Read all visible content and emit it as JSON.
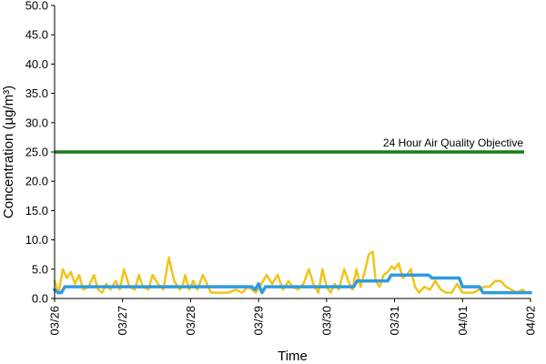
{
  "chart_data": {
    "type": "line",
    "title": "",
    "xlabel": "Time",
    "ylabel": "Concentration (µg/m³)",
    "ylim": [
      0,
      50
    ],
    "y_ticks": [
      "0.0",
      "5.0",
      "10.0",
      "15.0",
      "20.0",
      "25.0",
      "30.0",
      "35.0",
      "40.0",
      "45.0",
      "50.0"
    ],
    "x_tick_labels": [
      "03/26",
      "03/27",
      "03/28",
      "03/29",
      "03/30",
      "03/31",
      "04/01",
      "04/02"
    ],
    "grid": false,
    "legend": "none",
    "x_unit": "days from 03/26",
    "reference_lines": [
      {
        "label": "24 Hour Air Quality Objective",
        "y": 25,
        "color": "#1a7a1a"
      }
    ],
    "series": [
      {
        "color": "#f0c419",
        "x": [
          0,
          0.06,
          0.12,
          0.18,
          0.24,
          0.3,
          0.36,
          0.42,
          0.5,
          0.58,
          0.64,
          0.7,
          0.76,
          0.82,
          0.9,
          0.96,
          1.02,
          1.1,
          1.18,
          1.24,
          1.3,
          1.38,
          1.44,
          1.52,
          1.6,
          1.68,
          1.76,
          1.84,
          1.88,
          1.92,
          1.98,
          2.04,
          2.1,
          2.18,
          2.26,
          2.3,
          2.38,
          2.46,
          2.56,
          2.66,
          2.76,
          2.84,
          2.9,
          2.96,
          3.04,
          3.12,
          3.2,
          3.28,
          3.36,
          3.44,
          3.5,
          3.58,
          3.66,
          3.74,
          3.82,
          3.88,
          3.94,
          4.0,
          4.06,
          4.12,
          4.18,
          4.26,
          4.32,
          4.38,
          4.44,
          4.5,
          4.56,
          4.62,
          4.68,
          4.72,
          4.78,
          4.84,
          4.9,
          4.96,
          5.0,
          5.06,
          5.12,
          5.18,
          5.24,
          5.3,
          5.36,
          5.44,
          5.52,
          5.6,
          5.68,
          5.76,
          5.84,
          5.92,
          6.0,
          6.08,
          6.16,
          6.24,
          6.32,
          6.4,
          6.48,
          6.56,
          6.64,
          6.72,
          6.8,
          6.88,
          6.94,
          7.0
        ],
        "y": [
          3,
          1,
          5,
          3.5,
          4.5,
          2.5,
          4,
          1.5,
          2,
          4,
          1.5,
          1,
          2.5,
          1.5,
          3,
          1.5,
          5,
          2,
          1.5,
          4,
          2,
          1.5,
          4,
          2.5,
          1.5,
          7,
          3,
          1.5,
          2,
          4,
          1.5,
          3,
          1.5,
          4,
          2,
          1,
          1,
          1,
          1,
          1.5,
          1,
          2,
          1.5,
          1,
          2.5,
          4,
          2.5,
          4,
          1.5,
          3,
          2,
          1.5,
          2.5,
          5,
          2,
          1,
          5,
          2,
          1,
          2.5,
          1.5,
          5,
          3,
          1.5,
          5,
          2,
          4.5,
          7.5,
          8,
          3,
          2,
          4,
          4.5,
          5.5,
          5,
          6,
          3.5,
          4,
          5,
          2,
          1,
          2,
          1.5,
          3,
          1.5,
          1,
          1,
          2.5,
          1,
          1,
          1,
          1.5,
          2,
          2,
          3,
          3,
          2,
          1.5,
          1,
          1.5,
          1,
          1
        ]
      },
      {
        "color": "#2e9be0",
        "x": [
          0,
          0.05,
          0.1,
          0.15,
          0.2,
          0.25,
          2.9,
          2.95,
          3.0,
          3.05,
          3.1,
          3.15,
          3.2,
          3.9,
          3.95,
          4.4,
          4.45,
          4.9,
          4.95,
          5.5,
          5.55,
          5.95,
          6.0,
          6.25,
          6.3,
          7.0
        ],
        "y": [
          1.5,
          1,
          1,
          2,
          2,
          2,
          2,
          1.5,
          2.5,
          1,
          2,
          2,
          2,
          2,
          2,
          2,
          3,
          3,
          4,
          4,
          3.5,
          3.5,
          2,
          2,
          1,
          1
        ]
      }
    ]
  }
}
